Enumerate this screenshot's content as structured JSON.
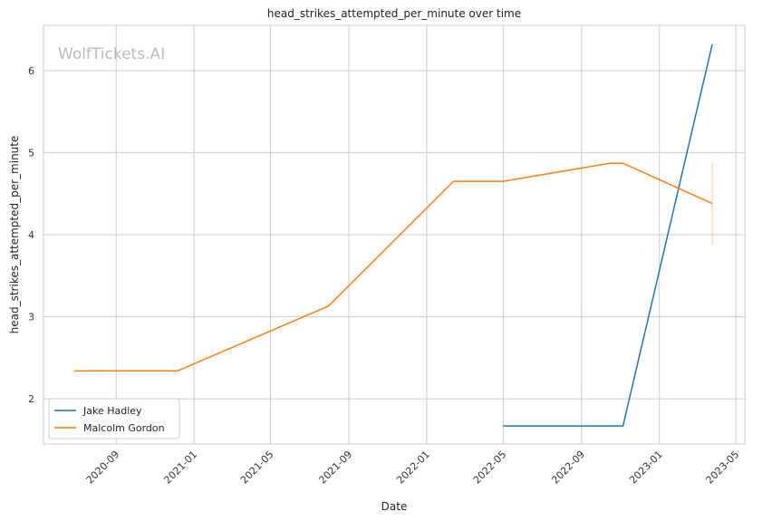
{
  "chart_data": {
    "type": "line",
    "title": "head_strikes_attempted_per_minute over time",
    "xlabel": "Date",
    "ylabel": "head_strikes_attempted_per_minute",
    "watermark": "WolfTickets.AI",
    "x_type": "date",
    "xlim": [
      "2020-05-10",
      "2023-05-15"
    ],
    "ylim": [
      1.45,
      6.55
    ],
    "x_ticks": [
      "2020-09",
      "2021-01",
      "2021-05",
      "2021-09",
      "2022-01",
      "2022-05",
      "2022-09",
      "2023-01",
      "2023-05"
    ],
    "y_ticks": [
      2,
      3,
      4,
      5,
      6
    ],
    "grid": true,
    "legend_position": "lower-left",
    "series": [
      {
        "name": "Jake Hadley",
        "color": "#1f77b4",
        "x": [
          "2022-05-01",
          "2022-11-05",
          "2023-03-25"
        ],
        "y": [
          1.67,
          1.67,
          6.32
        ]
      },
      {
        "name": "Malcolm Gordon",
        "color": "#ff7f0e",
        "x": [
          "2020-06-27",
          "2020-12-06",
          "2021-07-31",
          "2022-02-12",
          "2022-05-01",
          "2022-10-15",
          "2022-11-05",
          "2023-03-25"
        ],
        "y": [
          2.34,
          2.34,
          3.13,
          4.65,
          4.65,
          4.87,
          4.87,
          4.38
        ]
      }
    ],
    "annotations": [
      {
        "type": "error-bar",
        "x": "2023-03-25",
        "y_low": 3.88,
        "y_high": 4.88,
        "color": "#ffcc99"
      }
    ]
  }
}
